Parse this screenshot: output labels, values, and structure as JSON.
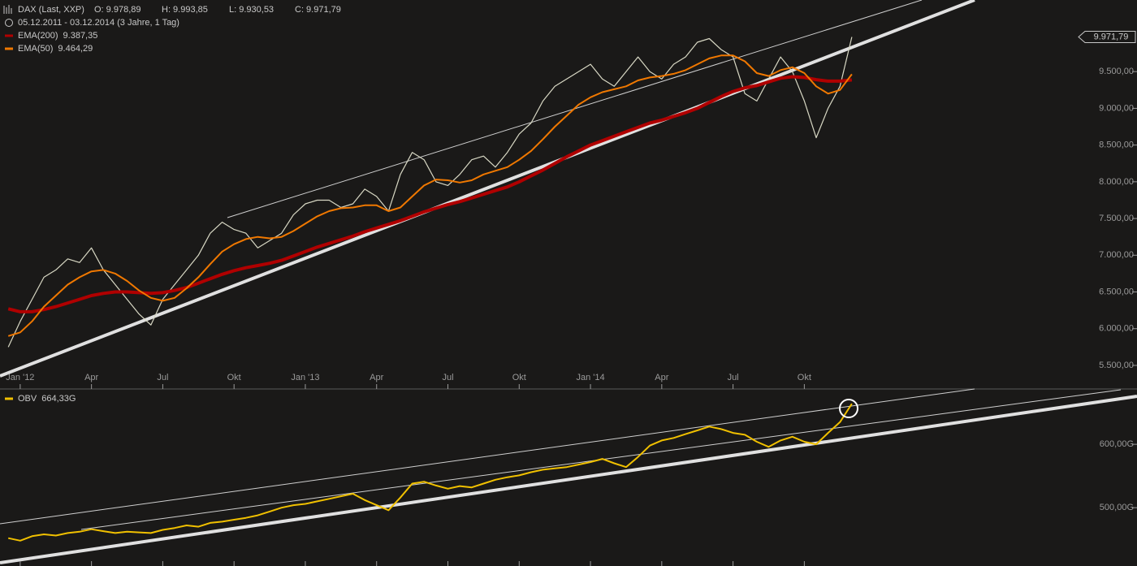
{
  "chart_data": [
    {
      "type": "line",
      "title": "DAX (Last, XXP)",
      "ohlc": [
        "O: 9.978,89",
        "H: 9.993,85",
        "L: 9.930,53",
        "C: 9.971,79"
      ],
      "subtitle": "05.12.2011 - 03.12.2014 (3 Jahre, 1 Tag)",
      "last_label": "9.971,79",
      "x": [
        -0.5,
        0,
        0.5,
        1,
        1.5,
        2,
        2.5,
        3,
        3.5,
        4,
        4.5,
        5,
        5.5,
        6,
        6.5,
        7,
        7.5,
        8,
        8.5,
        9,
        9.5,
        10,
        10.5,
        11,
        11.5,
        12,
        12.5,
        13,
        13.5,
        14,
        14.5,
        15,
        15.5,
        16,
        16.5,
        17,
        17.5,
        18,
        18.5,
        19,
        19.5,
        20,
        20.5,
        21,
        21.5,
        22,
        22.5,
        23,
        23.5,
        24,
        24.5,
        25,
        25.5,
        26,
        26.5,
        27,
        27.5,
        28,
        28.5,
        29,
        29.5,
        30,
        30.5,
        31,
        31.5,
        32,
        32.5,
        33,
        33.5,
        34,
        34.5,
        35
      ],
      "series": [
        {
          "name": "DAX",
          "color": "#d8d8c4",
          "width": 1.2,
          "values": [
            5750,
            6100,
            6400,
            6700,
            6800,
            6950,
            6900,
            7100,
            6800,
            6600,
            6400,
            6200,
            6050,
            6400,
            6600,
            6800,
            7000,
            7300,
            7450,
            7350,
            7300,
            7100,
            7200,
            7300,
            7550,
            7700,
            7750,
            7750,
            7650,
            7700,
            7900,
            7800,
            7600,
            8100,
            8400,
            8300,
            8000,
            7950,
            8100,
            8300,
            8350,
            8200,
            8400,
            8650,
            8800,
            9100,
            9300,
            9400,
            9500,
            9600,
            9400,
            9300,
            9500,
            9700,
            9500,
            9400,
            9600,
            9700,
            9900,
            9950,
            9800,
            9700,
            9200,
            9100,
            9400,
            9700,
            9500,
            9100,
            8600,
            9000,
            9300,
            9972
          ]
        },
        {
          "name": "EMA(200)",
          "legend_value": "9.387,35",
          "color": "#b00000",
          "width": 4,
          "legend": true,
          "values": [
            6270,
            6230,
            6230,
            6260,
            6300,
            6350,
            6400,
            6450,
            6480,
            6500,
            6500,
            6490,
            6480,
            6490,
            6520,
            6560,
            6620,
            6680,
            6740,
            6790,
            6830,
            6860,
            6890,
            6930,
            6990,
            7050,
            7110,
            7160,
            7210,
            7260,
            7320,
            7370,
            7420,
            7470,
            7530,
            7590,
            7640,
            7690,
            7730,
            7780,
            7830,
            7880,
            7930,
            8000,
            8080,
            8160,
            8250,
            8340,
            8420,
            8500,
            8560,
            8620,
            8680,
            8740,
            8800,
            8840,
            8890,
            8940,
            9000,
            9080,
            9160,
            9230,
            9280,
            9310,
            9360,
            9410,
            9430,
            9420,
            9390,
            9370,
            9370,
            9387
          ]
        },
        {
          "name": "EMA(50)",
          "legend_value": "9.464,29",
          "color": "#f07800",
          "width": 2,
          "legend": true,
          "values": [
            5900,
            5950,
            6100,
            6300,
            6450,
            6600,
            6700,
            6780,
            6800,
            6750,
            6650,
            6520,
            6420,
            6380,
            6420,
            6550,
            6700,
            6880,
            7050,
            7150,
            7220,
            7250,
            7230,
            7250,
            7330,
            7430,
            7530,
            7600,
            7640,
            7650,
            7680,
            7680,
            7600,
            7650,
            7800,
            7950,
            8030,
            8020,
            7990,
            8020,
            8100,
            8150,
            8200,
            8300,
            8420,
            8580,
            8750,
            8900,
            9050,
            9150,
            9220,
            9260,
            9300,
            9380,
            9420,
            9440,
            9470,
            9520,
            9600,
            9680,
            9720,
            9720,
            9640,
            9480,
            9440,
            9520,
            9560,
            9480,
            9300,
            9200,
            9250,
            9464
          ]
        }
      ],
      "xlim": [
        -0.85,
        44.95
      ],
      "xticks": [
        {
          "value": 0,
          "label": "Jan '12"
        },
        {
          "value": 3,
          "label": "Apr"
        },
        {
          "value": 6,
          "label": "Jul"
        },
        {
          "value": 9,
          "label": "Okt"
        },
        {
          "value": 12,
          "label": "Jan '13"
        },
        {
          "value": 15,
          "label": "Apr"
        },
        {
          "value": 18,
          "label": "Jul"
        },
        {
          "value": 21,
          "label": "Okt"
        },
        {
          "value": 24,
          "label": "Jan '14"
        },
        {
          "value": 27,
          "label": "Apr"
        },
        {
          "value": 30,
          "label": "Jul"
        },
        {
          "value": 33,
          "label": "Okt"
        }
      ],
      "ylim": [
        5179,
        10475
      ],
      "yticks": [
        {
          "value": 5500,
          "label": "5.500,00"
        },
        {
          "value": 6000,
          "label": "6.000,00"
        },
        {
          "value": 6500,
          "label": "6.500,00"
        },
        {
          "value": 7000,
          "label": "7.000,00"
        },
        {
          "value": 7500,
          "label": "7.500,00"
        },
        {
          "value": 8000,
          "label": "8.000,00"
        },
        {
          "value": 8500,
          "label": "8.500,00"
        },
        {
          "value": 9000,
          "label": "9.000,00"
        },
        {
          "value": 9500,
          "label": "9.500,00"
        }
      ]
    },
    {
      "type": "line",
      "x": [
        -0.5,
        0,
        0.5,
        1,
        1.5,
        2,
        2.5,
        3,
        3.5,
        4,
        4.5,
        5,
        5.5,
        6,
        6.5,
        7,
        7.5,
        8,
        8.5,
        9,
        9.5,
        10,
        10.5,
        11,
        11.5,
        12,
        12.5,
        13,
        13.5,
        14,
        14.5,
        15,
        15.5,
        16,
        16.5,
        17,
        17.5,
        18,
        18.5,
        19,
        19.5,
        20,
        20.5,
        21,
        21.5,
        22,
        22.5,
        23,
        23.5,
        24,
        24.5,
        25,
        25.5,
        26,
        26.5,
        27,
        27.5,
        28,
        28.5,
        29,
        29.5,
        30,
        30.5,
        31,
        31.5,
        32,
        32.5,
        33,
        33.5,
        34,
        34.5,
        35
      ],
      "series": [
        {
          "name": "OBV",
          "legend_value": "664,33G",
          "color": "#f0c000",
          "width": 2,
          "legend": true,
          "values": [
            452,
            448,
            455,
            458,
            456,
            460,
            462,
            466,
            463,
            460,
            462,
            461,
            460,
            465,
            468,
            472,
            470,
            476,
            478,
            481,
            484,
            488,
            494,
            500,
            504,
            506,
            510,
            514,
            518,
            522,
            512,
            504,
            496,
            516,
            538,
            541,
            535,
            530,
            534,
            532,
            538,
            544,
            548,
            551,
            556,
            560,
            562,
            564,
            568,
            572,
            577,
            570,
            564,
            580,
            598,
            606,
            610,
            616,
            622,
            628,
            624,
            618,
            615,
            604,
            596,
            606,
            612,
            604,
            600,
            618,
            635,
            664
          ]
        }
      ],
      "xlim": [
        -0.85,
        44.95
      ],
      "ylim": [
        408,
        686
      ],
      "yticks": [
        {
          "value": 500,
          "label": "500,00G"
        },
        {
          "value": 600,
          "label": "600,00G"
        }
      ]
    }
  ]
}
